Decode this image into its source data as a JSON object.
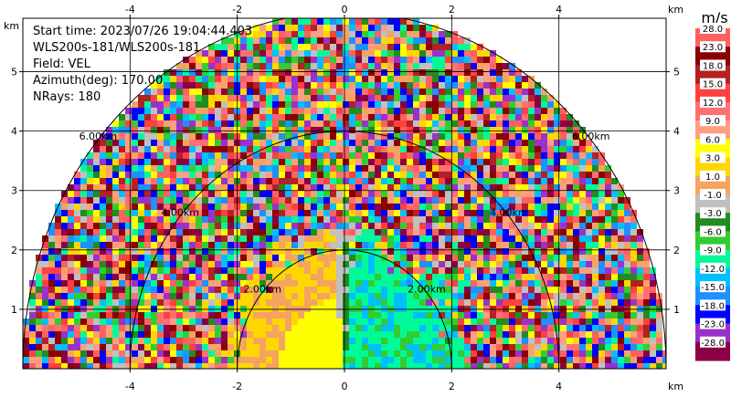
{
  "info": {
    "start_time": "Start time: 2023/07/26 19:04:44.403",
    "instrument": "WLS200s-181/WLS200s-181",
    "field": "Field: VEL",
    "azimuth": "Azimuth(deg): 170.00",
    "nrays": "NRays: 180"
  },
  "colorbar": {
    "unit": "m/s",
    "levels": [
      "28.0",
      "23.0",
      "18.0",
      "15.0",
      "12.0",
      "9.0",
      "6.0",
      "3.0",
      "1.0",
      "-1.0",
      "-3.0",
      "-6.0",
      "-9.0",
      "-12.0",
      "-15.0",
      "-18.0",
      "-23.0",
      "-28.0"
    ],
    "colors": [
      "#ff6060",
      "#8b0000",
      "#b22222",
      "#ff4040",
      "#ff7070",
      "#ff9f80",
      "#ffff00",
      "#ffd700",
      "#f4a460",
      "#c0c0c0",
      "#228b22",
      "#32cd32",
      "#00fa9a",
      "#00bfff",
      "#1e90ff",
      "#0000ff",
      "#9932cc",
      "#8b0045"
    ]
  },
  "chart_data": {
    "type": "heatmap",
    "title": "",
    "field": "VEL",
    "x_unit": "km",
    "y_unit": "km",
    "x_ticks": [
      "-4",
      "-2",
      "0",
      "2",
      "4"
    ],
    "y_ticks": [
      "1",
      "2",
      "3",
      "4",
      "5"
    ],
    "xlim": [
      -6.0,
      6.0
    ],
    "ylim": [
      0.0,
      5.9
    ],
    "range_rings_km": [
      2,
      4,
      6
    ],
    "range_ring_labels": [
      "2.00km",
      "4.00km",
      "6.00km"
    ],
    "max_range_km": 6.0,
    "azimuth_deg": 170.0,
    "nrays": 180
  }
}
